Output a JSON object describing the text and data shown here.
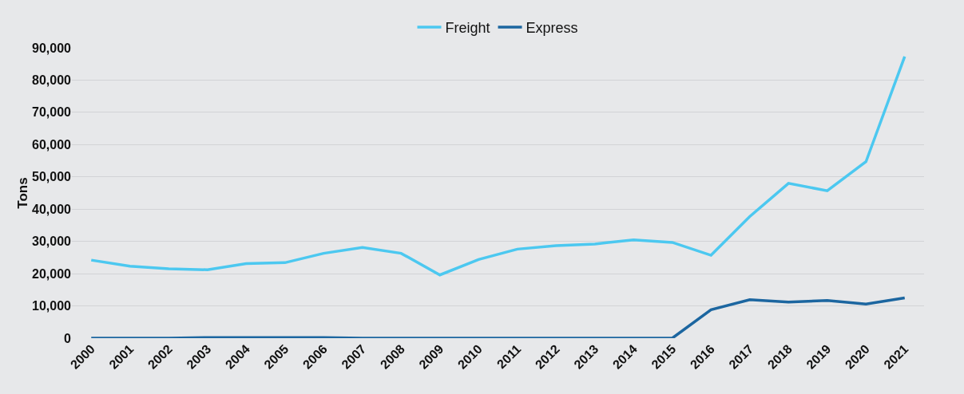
{
  "chart_data": {
    "type": "line",
    "ylabel": "Tons",
    "categories": [
      "2000",
      "2001",
      "2002",
      "2003",
      "2004",
      "2005",
      "2006",
      "2007",
      "2008",
      "2009",
      "2010",
      "2011",
      "2012",
      "2013",
      "2014",
      "2015",
      "2016",
      "2017",
      "2018",
      "2019",
      "2020",
      "2021"
    ],
    "series": [
      {
        "name": "Freight",
        "color": "#4cc8f0",
        "values": [
          24200,
          22300,
          21500,
          21200,
          23100,
          23400,
          26300,
          28100,
          26300,
          19600,
          24400,
          27600,
          28700,
          29200,
          30500,
          29700,
          25700,
          37700,
          48000,
          45700,
          54700,
          87300
        ]
      },
      {
        "name": "Express",
        "color": "#1c66a0",
        "values": [
          0,
          0,
          0,
          200,
          200,
          200,
          200,
          0,
          0,
          0,
          0,
          0,
          0,
          0,
          0,
          0,
          8800,
          11900,
          11200,
          11700,
          10600,
          12500
        ]
      }
    ],
    "ylim": [
      0,
      90000
    ],
    "yticks": [
      {
        "value": 0,
        "label": "0"
      },
      {
        "value": 10000,
        "label": "10,000"
      },
      {
        "value": 20000,
        "label": "20,000"
      },
      {
        "value": 30000,
        "label": "30,000"
      },
      {
        "value": 40000,
        "label": "40,000"
      },
      {
        "value": 50000,
        "label": "50,000"
      },
      {
        "value": 60000,
        "label": "60,000"
      },
      {
        "value": 70000,
        "label": "70,000"
      },
      {
        "value": 80000,
        "label": "80,000"
      },
      {
        "value": 90000,
        "label": "90,000"
      }
    ],
    "grid": "y",
    "legend": "top",
    "marker": "none",
    "line_style": "solid"
  }
}
